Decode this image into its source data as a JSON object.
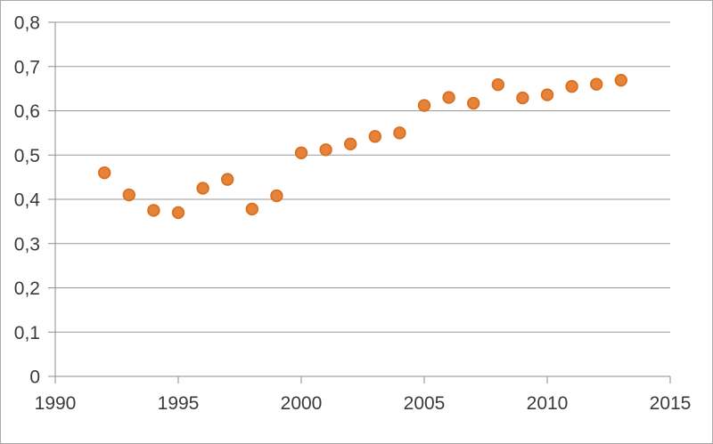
{
  "chart_data": {
    "type": "scatter",
    "title": "",
    "xlabel": "",
    "ylabel": "",
    "xlim": [
      1990,
      2015
    ],
    "ylim": [
      0,
      0.8
    ],
    "x_ticks": [
      1990,
      1995,
      2000,
      2005,
      2010,
      2015
    ],
    "x_tick_labels": [
      "1990",
      "1995",
      "2000",
      "2005",
      "2010",
      "2015"
    ],
    "y_ticks": [
      0,
      0.1,
      0.2,
      0.3,
      0.4,
      0.5,
      0.6,
      0.7,
      0.8
    ],
    "y_tick_labels": [
      "0",
      "0,1",
      "0,2",
      "0,3",
      "0,4",
      "0,5",
      "0,6",
      "0,7",
      "0,8"
    ],
    "grid": "horizontal",
    "legend": "none",
    "series": [
      {
        "name": "series-1",
        "marker": "circle",
        "marker_color": "#E6823A",
        "marker_edge_color": "#D8701E",
        "points": [
          {
            "x": 1992,
            "y": 0.46
          },
          {
            "x": 1993,
            "y": 0.41
          },
          {
            "x": 1994,
            "y": 0.375
          },
          {
            "x": 1995,
            "y": 0.37
          },
          {
            "x": 1996,
            "y": 0.425
          },
          {
            "x": 1997,
            "y": 0.445
          },
          {
            "x": 1998,
            "y": 0.378
          },
          {
            "x": 1999,
            "y": 0.408
          },
          {
            "x": 2000,
            "y": 0.505
          },
          {
            "x": 2001,
            "y": 0.512
          },
          {
            "x": 2002,
            "y": 0.525
          },
          {
            "x": 2003,
            "y": 0.542
          },
          {
            "x": 2004,
            "y": 0.55
          },
          {
            "x": 2005,
            "y": 0.612
          },
          {
            "x": 2006,
            "y": 0.63
          },
          {
            "x": 2007,
            "y": 0.617
          },
          {
            "x": 2008,
            "y": 0.659
          },
          {
            "x": 2009,
            "y": 0.629
          },
          {
            "x": 2010,
            "y": 0.636
          },
          {
            "x": 2011,
            "y": 0.655
          },
          {
            "x": 2012,
            "y": 0.66
          },
          {
            "x": 2013,
            "y": 0.669
          }
        ]
      }
    ],
    "colors": {
      "background": "#FFFFFF",
      "frame_border": "#AAAAAA",
      "gridline": "#9A9A9A",
      "axis": "#8E8E8E",
      "tick_text": "#3A3A3A"
    }
  }
}
